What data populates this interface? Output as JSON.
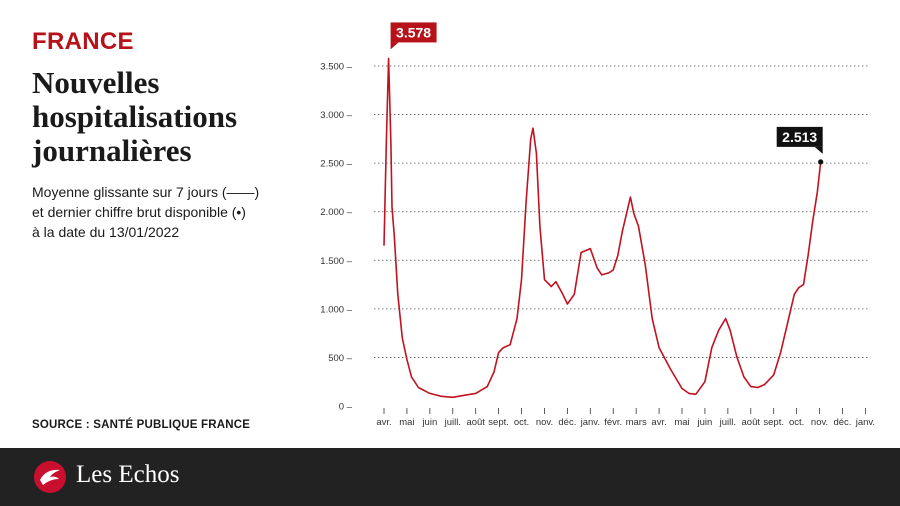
{
  "header": {
    "kicker": "FRANCE",
    "title_lines": [
      "Nouvelles",
      "hospitalisations",
      "journalières"
    ],
    "subtitle_lines": [
      "Moyenne glissante sur 7 jours (——)",
      "et dernier chiffre brut disponible (•)",
      "à la date du 13/01/2022"
    ]
  },
  "source": "SOURCE : SANTÉ PUBLIQUE FRANCE",
  "footer": {
    "brand": "Les Echos",
    "icon": "les-echos-logo-icon"
  },
  "colors": {
    "accent": "#b7121a",
    "line": "#c1121f",
    "footer_bg": "#222222",
    "callout_last": "#111111"
  },
  "chart_data": {
    "type": "line",
    "ylim": [
      0,
      3500
    ],
    "yticks": [
      {
        "value": 0,
        "label": "0"
      },
      {
        "value": 500,
        "label": "500"
      },
      {
        "value": 1000,
        "label": "1.000"
      },
      {
        "value": 1500,
        "label": "1.500"
      },
      {
        "value": 2000,
        "label": "2.000"
      },
      {
        "value": 2500,
        "label": "2.500"
      },
      {
        "value": 3000,
        "label": "3.000"
      },
      {
        "value": 3500,
        "label": "3.500"
      }
    ],
    "grid": "horizontal-dotted",
    "xticks": [
      "avr.",
      "mai",
      "juin",
      "juill.",
      "août",
      "sept.",
      "oct.",
      "nov.",
      "déc.",
      "janv.",
      "févr.",
      "mars",
      "avr.",
      "mai",
      "juin",
      "juill.",
      "août",
      "sept.",
      "oct.",
      "nov.",
      "déc.",
      "janv."
    ],
    "x_period": "2020-03-30 to 2022-01-13",
    "series": [
      {
        "points": [
          [
            0.0,
            1650
          ],
          [
            0.1,
            2700
          ],
          [
            0.2,
            3578
          ],
          [
            0.3,
            2700
          ],
          [
            0.35,
            2050
          ],
          [
            0.45,
            1750
          ],
          [
            0.6,
            1150
          ],
          [
            0.8,
            700
          ],
          [
            1.0,
            480
          ],
          [
            1.2,
            300
          ],
          [
            1.5,
            190
          ],
          [
            2.0,
            130
          ],
          [
            2.5,
            100
          ],
          [
            3.0,
            90
          ],
          [
            3.5,
            110
          ],
          [
            4.0,
            130
          ],
          [
            4.5,
            200
          ],
          [
            4.8,
            350
          ],
          [
            5.0,
            550
          ],
          [
            5.2,
            600
          ],
          [
            5.5,
            630
          ],
          [
            5.8,
            900
          ],
          [
            6.0,
            1300
          ],
          [
            6.2,
            2100
          ],
          [
            6.4,
            2750
          ],
          [
            6.5,
            2860
          ],
          [
            6.65,
            2600
          ],
          [
            6.8,
            1850
          ],
          [
            7.0,
            1300
          ],
          [
            7.3,
            1230
          ],
          [
            7.5,
            1280
          ],
          [
            7.8,
            1150
          ],
          [
            8.0,
            1050
          ],
          [
            8.3,
            1150
          ],
          [
            8.6,
            1580
          ],
          [
            9.0,
            1620
          ],
          [
            9.3,
            1420
          ],
          [
            9.5,
            1350
          ],
          [
            9.8,
            1370
          ],
          [
            10.0,
            1400
          ],
          [
            10.2,
            1550
          ],
          [
            10.4,
            1800
          ],
          [
            10.6,
            2000
          ],
          [
            10.75,
            2150
          ],
          [
            10.9,
            1980
          ],
          [
            11.1,
            1850
          ],
          [
            11.4,
            1450
          ],
          [
            11.7,
            900
          ],
          [
            12.0,
            600
          ],
          [
            12.5,
            380
          ],
          [
            13.0,
            180
          ],
          [
            13.3,
            130
          ],
          [
            13.6,
            120
          ],
          [
            14.0,
            250
          ],
          [
            14.3,
            600
          ],
          [
            14.6,
            780
          ],
          [
            14.9,
            900
          ],
          [
            15.1,
            780
          ],
          [
            15.4,
            500
          ],
          [
            15.7,
            300
          ],
          [
            16.0,
            200
          ],
          [
            16.3,
            190
          ],
          [
            16.6,
            220
          ],
          [
            17.0,
            320
          ],
          [
            17.3,
            550
          ],
          [
            17.6,
            850
          ],
          [
            17.9,
            1150
          ],
          [
            18.1,
            1220
          ],
          [
            18.3,
            1250
          ],
          [
            18.5,
            1550
          ],
          [
            18.7,
            1900
          ],
          [
            18.9,
            2200
          ],
          [
            19.05,
            2513
          ]
        ]
      }
    ],
    "annotations": [
      {
        "label": "3.578",
        "value": 3578,
        "kind": "peak",
        "position": "top"
      },
      {
        "label": "2.513",
        "value": 2513,
        "kind": "last-raw-value",
        "position": "right"
      }
    ]
  }
}
